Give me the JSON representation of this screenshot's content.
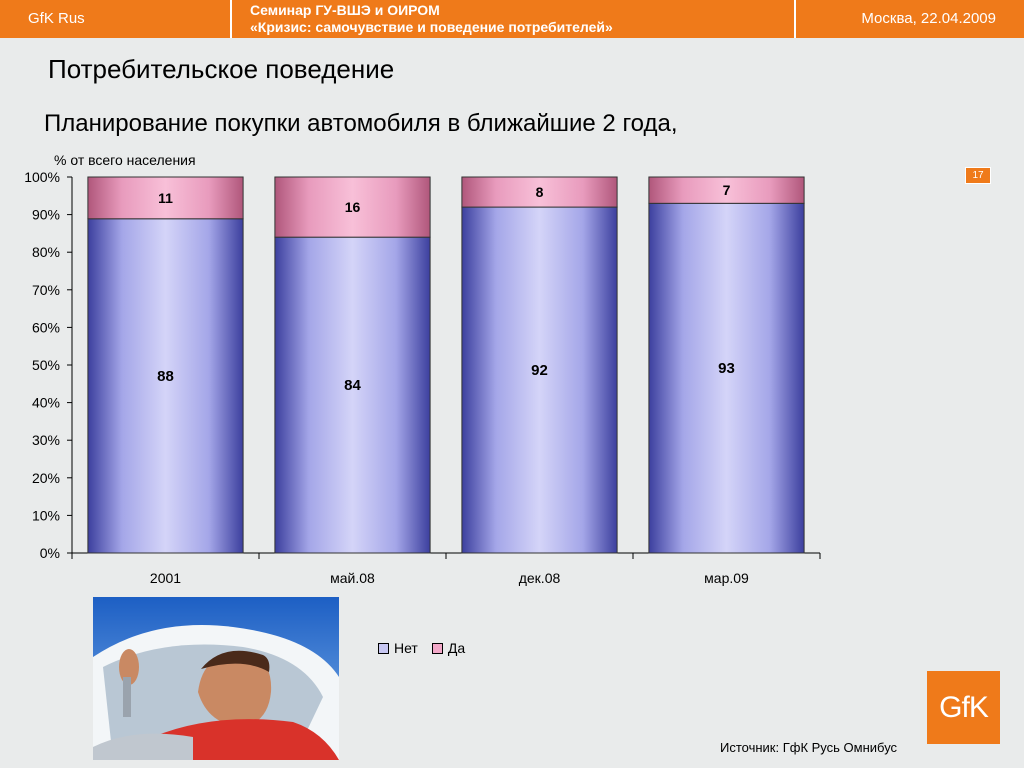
{
  "header": {
    "brand": "GfK Rus",
    "seminar_line1": "Семинар ГУ-ВШЭ и ОИРОМ",
    "seminar_line2": "«Кризис: самочувствие и поведение потребителей»",
    "place_date": "Москва, 22.04.2009",
    "accent_color": "#ef7a1a"
  },
  "section_title": "Потребительское поведение",
  "page_number": "17",
  "chart_data": {
    "type": "bar",
    "stacked": true,
    "percent_stacked": true,
    "title": "Планирование покупки автомобиля в ближайшие 2 года,",
    "ylabel": "% от всего населения",
    "xlabel": "",
    "categories": [
      "2001",
      "май.08",
      "дек.08",
      "мар.09"
    ],
    "series": [
      {
        "name": "Нет",
        "values": [
          88,
          84,
          92,
          93
        ],
        "color": "#c7c7f2",
        "edge_color": "#3c3f9e"
      },
      {
        "name": "Да",
        "values": [
          11,
          16,
          8,
          7
        ],
        "color": "#f2a8c8",
        "edge_color": "#b0577b"
      }
    ],
    "ylim": [
      0,
      100
    ],
    "yticks": [
      "0%",
      "10%",
      "20%",
      "30%",
      "40%",
      "50%",
      "60%",
      "70%",
      "80%",
      "90%",
      "100%"
    ],
    "grid": false,
    "legend_position": "bottom"
  },
  "legend": {
    "no_label": "Нет",
    "yes_label": "Да"
  },
  "logo_text": "GfK",
  "source": "Источник: ГфК Русь Омнибус"
}
